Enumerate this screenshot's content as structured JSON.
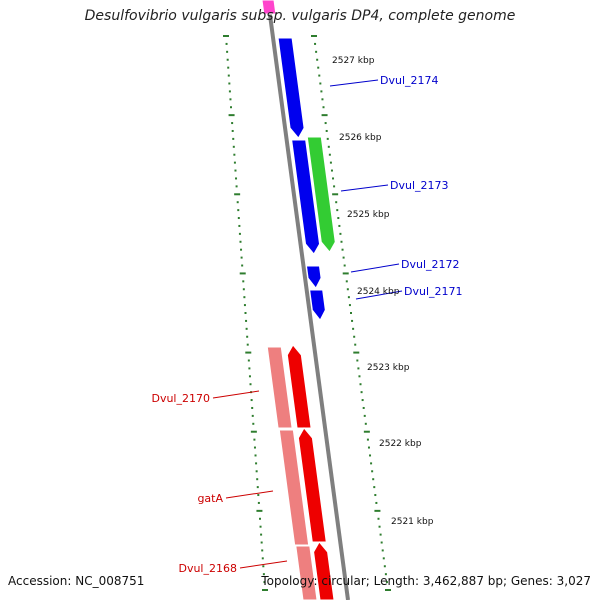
{
  "title": "Desulfovibrio vulgaris subsp. vulgaris DP4, complete genome",
  "footer": {
    "accession": "Accession: NC_008751",
    "stats": "Topology: circular; Length: 3,462,887 bp; Genes: 3,027"
  },
  "colors": {
    "backbone": "#7f7f7f",
    "tick": "#2e7d2e",
    "plus_label": "#0000cc",
    "minus_label": "#cc0000",
    "blue_gene": "#0000ee",
    "green_gene": "#33cc33",
    "red_gene": "#ee0000",
    "pink_gene": "#ee7f7f",
    "magenta_gene": "#ff44cc"
  },
  "scale_labels": [
    "2527 kbp",
    "2526 kbp",
    "2525 kbp",
    "2524 kbp",
    "2523 kbp",
    "2522 kbp",
    "2521 kbp"
  ],
  "gene_labels": {
    "plus": [
      "Dvul_2174",
      "Dvul_2173",
      "Dvul_2172",
      "Dvul_2171"
    ],
    "minus": [
      "Dvul_2170",
      "gatA",
      "Dvul_2168"
    ]
  }
}
